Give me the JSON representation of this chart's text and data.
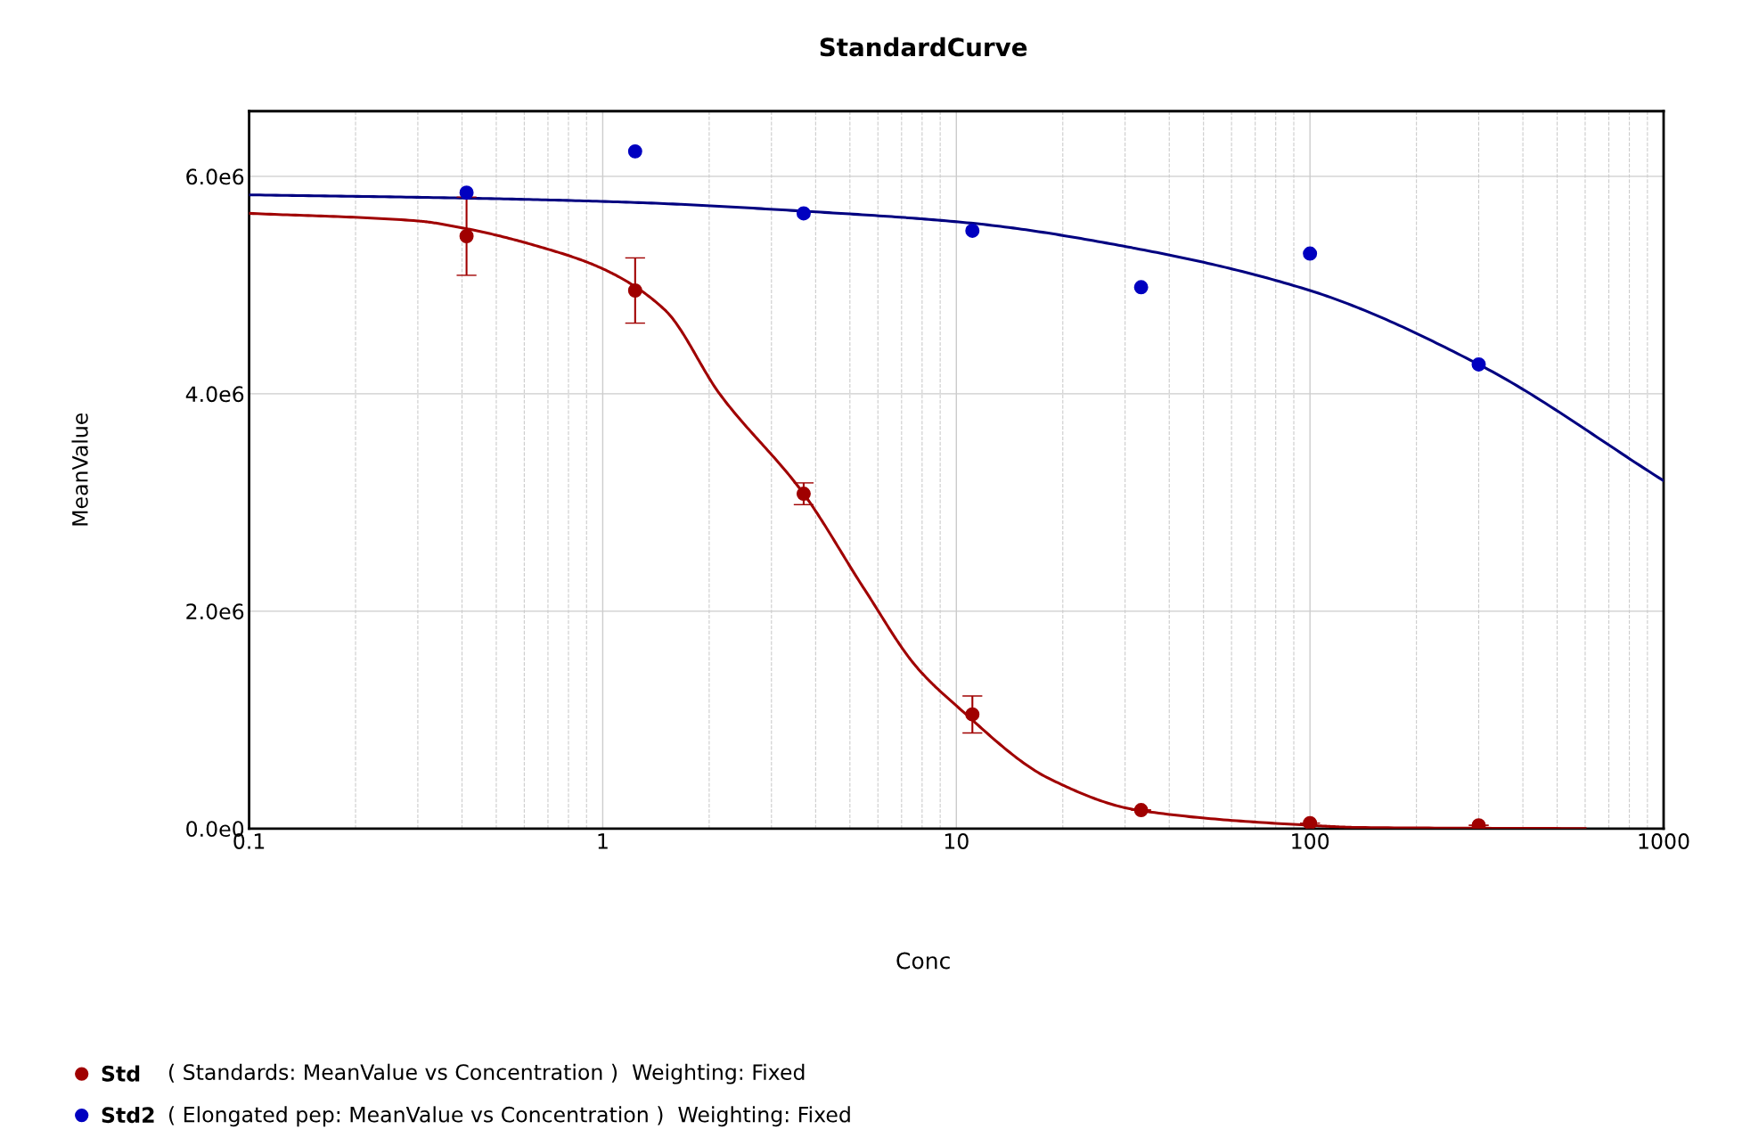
{
  "chart_data": {
    "type": "scatter",
    "title": "StandardCurve",
    "xlabel": "Conc",
    "ylabel": "MeanValue",
    "log": "x",
    "xlim": [
      0.1,
      1000
    ],
    "xticks": [
      0.1,
      1,
      10,
      100,
      1000
    ],
    "ylim": [
      0,
      6600000
    ],
    "yticks": [
      {
        "value": 0,
        "label": "0.0e0"
      },
      {
        "value": 2000000,
        "label": "2.0e6"
      },
      {
        "value": 4000000,
        "label": "4.0e6"
      },
      {
        "value": 6000000,
        "label": "6.0e6"
      }
    ],
    "grid": true,
    "legend": "bottom left",
    "series": [
      {
        "name": "Std",
        "marker": "circle",
        "color": "#a00000",
        "x": [
          0.412,
          1.235,
          3.7,
          11.1,
          33.3,
          100,
          300
        ],
        "values": [
          5450000,
          4950000,
          3080000,
          1050000,
          170000,
          50000,
          30000
        ],
        "errors": [
          360000,
          300000,
          100000,
          170000,
          null,
          null,
          null
        ]
      },
      {
        "name": "Std2",
        "marker": "circle",
        "color": "#0000c0",
        "x": [
          0.412,
          1.235,
          3.7,
          11.1,
          33.3,
          100,
          300
        ],
        "values": [
          5850000,
          6230000,
          5660000,
          5500000,
          4980000,
          5290000,
          4270000
        ]
      },
      {
        "type": "line",
        "color": "#a00000",
        "x": [
          0.1,
          0.3,
          0.41,
          0.7,
          1,
          1.5,
          2.14,
          3.7,
          5.5,
          7.7,
          10,
          18.3,
          32.5,
          100,
          138,
          600
        ],
        "values": [
          5660000,
          5590000,
          5520000,
          5330000,
          5150000,
          4770000,
          4000000,
          3080000,
          2200000,
          1490000,
          1130000,
          460000,
          170000,
          30000,
          10000,
          0
        ]
      },
      {
        "type": "line",
        "color": "#000080",
        "x": [
          0.1,
          0.41,
          1.23,
          3.7,
          11,
          33,
          100,
          300,
          1000
        ],
        "values": [
          5830000,
          5800000,
          5760000,
          5680000,
          5570000,
          5330000,
          4950000,
          4270000,
          3200000
        ]
      }
    ],
    "annotations": [
      "( Standards: MeanValue vs Concentration )  Weighting: Fixed",
      "( Elongated pep: MeanValue vs Concentration )  Weighting: Fixed"
    ]
  }
}
